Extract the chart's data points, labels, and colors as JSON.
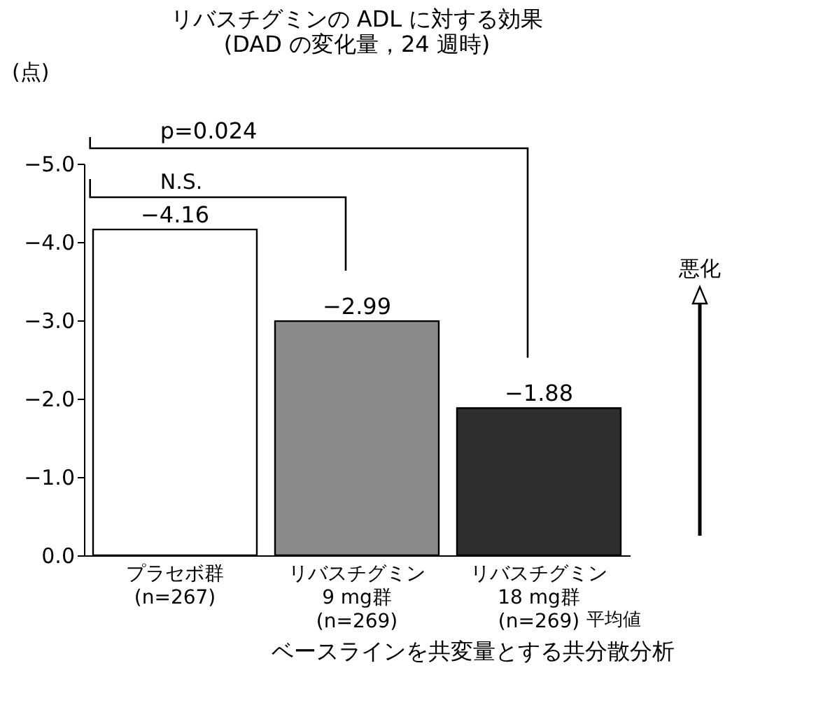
{
  "chart_data": {
    "type": "bar",
    "title": "リバスチグミンの ADL に対する効果",
    "subtitle": "(DAD の変化量，24 週時)",
    "ylabel": "(点)",
    "categories": [
      "プラセボ群\n(n=267)",
      "リバスチグミン\n9 mg群\n(n=269)",
      "リバスチグミン\n18 mg群\n(n=269)"
    ],
    "values": [
      -4.16,
      -2.99,
      -1.88
    ],
    "colors": [
      "#ffffff",
      "#8a8a8a",
      "#2e2e2e"
    ],
    "data_labels": true,
    "ylim": [
      0,
      -5
    ],
    "yticks": [
      {
        "value": 0,
        "label": "0.0"
      },
      {
        "value": -1,
        "label": "−1.0"
      },
      {
        "value": -2,
        "label": "−2.0"
      },
      {
        "value": -3,
        "label": "−3.0"
      },
      {
        "value": -4,
        "label": "−4.0"
      },
      {
        "value": -5,
        "label": "−5.0"
      }
    ],
    "annotations": [
      "p=0.024",
      "N.S.",
      "悪化",
      "平均値",
      "ベースラインを共変量とする共分散分析"
    ]
  }
}
